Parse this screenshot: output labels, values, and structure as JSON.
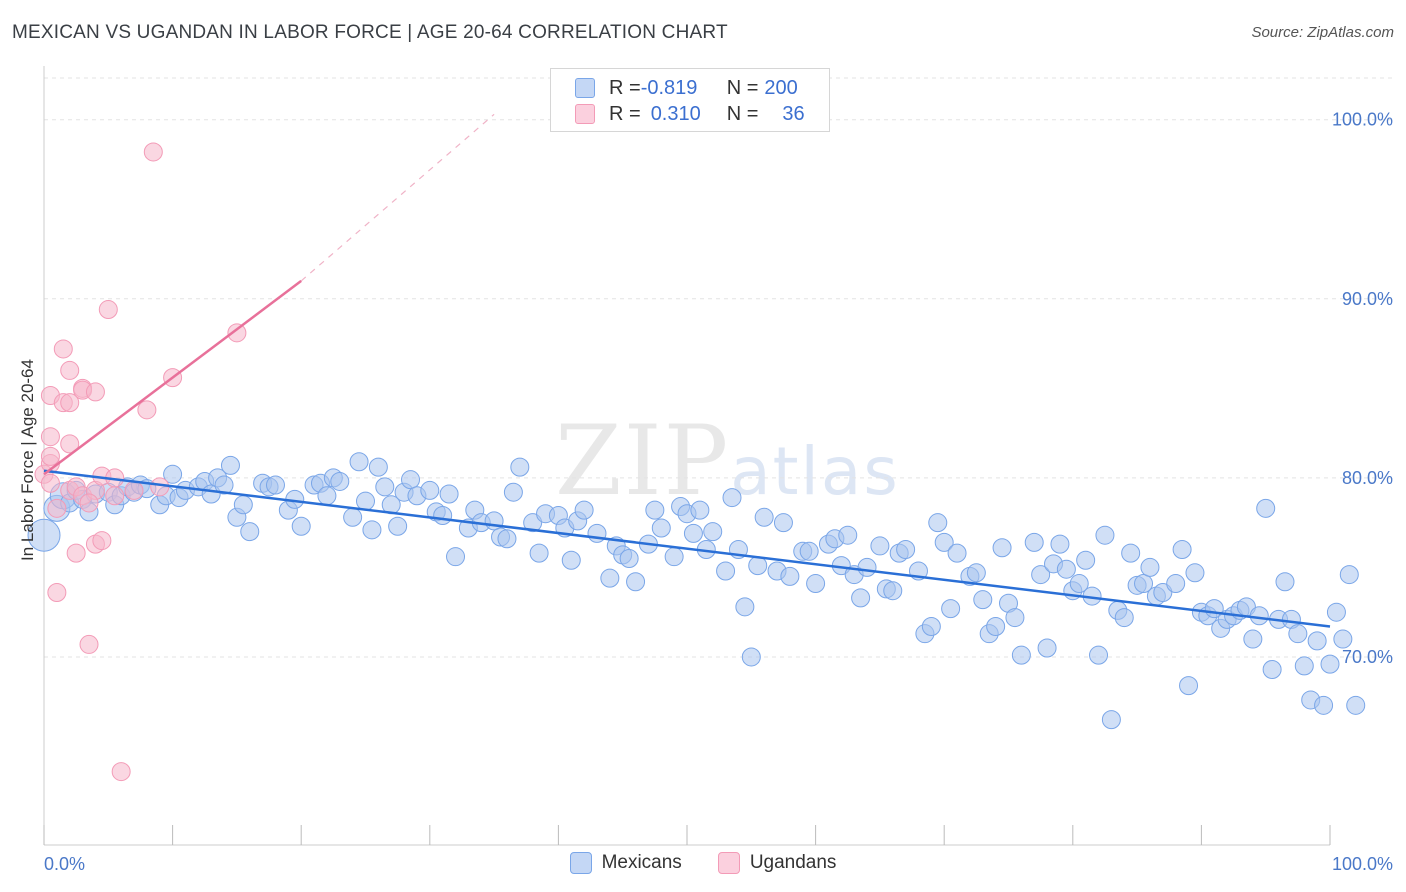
{
  "title": "MEXICAN VS UGANDAN IN LABOR FORCE | AGE 20-64 CORRELATION CHART",
  "source": "Source: ZipAtlas.com",
  "watermark": {
    "zip": "ZIP",
    "atlas": "atlas"
  },
  "legend": {
    "rows": [
      {
        "r_label": "R = ",
        "r_value": "-0.819",
        "n_label": "N = ",
        "n_value": "200",
        "color": "#a9c4ef"
      },
      {
        "r_label": "R = ",
        "r_value": "0.310",
        "n_label": "N = ",
        "n_value": "36",
        "color": "#f6b7cb"
      }
    ]
  },
  "bottom_legend": [
    {
      "label": "Mexicans",
      "color": "#a9c4ef"
    },
    {
      "label": "Ugandans",
      "color": "#f6b7cb"
    }
  ],
  "chart_data": {
    "type": "scatter",
    "title": "MEXICAN VS UGANDAN IN LABOR FORCE | AGE 20-64 CORRELATION CHART",
    "xlabel": "",
    "ylabel": "In Labor Force | Age 20-64",
    "xlim": [
      0,
      100
    ],
    "ylim": [
      59.5,
      103
    ],
    "x_tick_labels": [
      "0.0%",
      "100.0%"
    ],
    "y_ticks": [
      70,
      80,
      90,
      100
    ],
    "y_tick_labels": [
      "70.0%",
      "80.0%",
      "90.0%",
      "100.0%"
    ],
    "grid": true,
    "series": [
      {
        "name": "Mexicans",
        "color": "#7aa6e8",
        "trend": {
          "x": [
            0,
            100
          ],
          "y": [
            80.4,
            71.7
          ]
        },
        "points": [
          [
            0,
            76.8
          ],
          [
            1,
            78.3
          ],
          [
            1.5,
            79.0
          ],
          [
            2,
            78.6
          ],
          [
            2.5,
            79.3
          ],
          [
            3,
            78.8
          ],
          [
            3.5,
            78.1
          ],
          [
            4,
            79.1
          ],
          [
            5,
            79.2
          ],
          [
            5.5,
            78.5
          ],
          [
            6,
            79.0
          ],
          [
            6.5,
            79.5
          ],
          [
            7,
            79.2
          ],
          [
            7.5,
            79.6
          ],
          [
            8,
            79.4
          ],
          [
            9,
            78.5
          ],
          [
            9.5,
            79.0
          ],
          [
            10,
            80.2
          ],
          [
            10.5,
            78.9
          ],
          [
            11,
            79.3
          ],
          [
            12,
            79.5
          ],
          [
            12.5,
            79.8
          ],
          [
            13,
            79.1
          ],
          [
            13.5,
            80.0
          ],
          [
            14,
            79.6
          ],
          [
            14.5,
            80.7
          ],
          [
            15,
            77.8
          ],
          [
            15.5,
            78.5
          ],
          [
            16,
            77.0
          ],
          [
            17,
            79.7
          ],
          [
            17.5,
            79.5
          ],
          [
            18,
            79.6
          ],
          [
            19,
            78.2
          ],
          [
            19.5,
            78.8
          ],
          [
            20,
            77.3
          ],
          [
            21,
            79.6
          ],
          [
            21.5,
            79.7
          ],
          [
            22,
            79.0
          ],
          [
            22.5,
            80.0
          ],
          [
            23,
            79.8
          ],
          [
            24,
            77.8
          ],
          [
            24.5,
            80.9
          ],
          [
            25,
            78.7
          ],
          [
            25.5,
            77.1
          ],
          [
            26,
            80.6
          ],
          [
            26.5,
            79.5
          ],
          [
            27,
            78.5
          ],
          [
            27.5,
            77.3
          ],
          [
            28,
            79.2
          ],
          [
            28.5,
            79.9
          ],
          [
            29,
            79.0
          ],
          [
            30,
            79.3
          ],
          [
            30.5,
            78.1
          ],
          [
            31,
            77.9
          ],
          [
            31.5,
            79.1
          ],
          [
            32,
            75.6
          ],
          [
            33,
            77.2
          ],
          [
            33.5,
            78.2
          ],
          [
            34,
            77.5
          ],
          [
            35,
            77.6
          ],
          [
            35.5,
            76.7
          ],
          [
            36,
            76.6
          ],
          [
            36.5,
            79.2
          ],
          [
            37,
            80.6
          ],
          [
            38,
            77.5
          ],
          [
            38.5,
            75.8
          ],
          [
            39,
            78.0
          ],
          [
            40,
            77.9
          ],
          [
            40.5,
            77.2
          ],
          [
            41,
            75.4
          ],
          [
            41.5,
            77.6
          ],
          [
            42,
            78.2
          ],
          [
            43,
            76.9
          ],
          [
            44,
            74.4
          ],
          [
            44.5,
            76.2
          ],
          [
            45,
            75.7
          ],
          [
            45.5,
            75.5
          ],
          [
            46,
            74.2
          ],
          [
            47,
            76.3
          ],
          [
            47.5,
            78.2
          ],
          [
            48,
            77.2
          ],
          [
            49,
            75.6
          ],
          [
            49.5,
            78.4
          ],
          [
            50,
            78.0
          ],
          [
            50.5,
            76.9
          ],
          [
            51,
            78.2
          ],
          [
            51.5,
            76.0
          ],
          [
            52,
            77.0
          ],
          [
            53,
            74.8
          ],
          [
            53.5,
            78.9
          ],
          [
            54,
            76.0
          ],
          [
            54.5,
            72.8
          ],
          [
            55,
            70.0
          ],
          [
            55.5,
            75.1
          ],
          [
            56,
            77.8
          ],
          [
            57,
            74.8
          ],
          [
            57.5,
            77.5
          ],
          [
            58,
            74.5
          ],
          [
            59,
            75.9
          ],
          [
            59.5,
            75.9
          ],
          [
            60,
            74.1
          ],
          [
            61,
            76.3
          ],
          [
            61.5,
            76.6
          ],
          [
            62,
            75.1
          ],
          [
            62.5,
            76.8
          ],
          [
            63,
            74.6
          ],
          [
            63.5,
            73.3
          ],
          [
            64,
            75.0
          ],
          [
            65,
            76.2
          ],
          [
            65.5,
            73.8
          ],
          [
            66,
            73.7
          ],
          [
            66.5,
            75.8
          ],
          [
            67,
            76.0
          ],
          [
            68,
            74.8
          ],
          [
            68.5,
            71.3
          ],
          [
            69,
            71.7
          ],
          [
            69.5,
            77.5
          ],
          [
            70,
            76.4
          ],
          [
            70.5,
            72.7
          ],
          [
            71,
            75.8
          ],
          [
            72,
            74.5
          ],
          [
            72.5,
            74.7
          ],
          [
            73,
            73.2
          ],
          [
            73.5,
            71.3
          ],
          [
            74,
            71.7
          ],
          [
            74.5,
            76.1
          ],
          [
            75,
            73.0
          ],
          [
            75.5,
            72.2
          ],
          [
            76,
            70.1
          ],
          [
            77,
            76.4
          ],
          [
            77.5,
            74.6
          ],
          [
            78,
            70.5
          ],
          [
            78.5,
            75.2
          ],
          [
            79,
            76.3
          ],
          [
            79.5,
            74.9
          ],
          [
            80,
            73.7
          ],
          [
            80.5,
            74.1
          ],
          [
            81,
            75.4
          ],
          [
            81.5,
            73.4
          ],
          [
            82,
            70.1
          ],
          [
            82.5,
            76.8
          ],
          [
            83,
            66.5
          ],
          [
            83.5,
            72.6
          ],
          [
            84,
            72.2
          ],
          [
            84.5,
            75.8
          ],
          [
            85,
            74.0
          ],
          [
            85.5,
            74.1
          ],
          [
            86,
            75.0
          ],
          [
            86.5,
            73.4
          ],
          [
            87,
            73.6
          ],
          [
            88,
            74.1
          ],
          [
            88.5,
            76.0
          ],
          [
            89,
            68.4
          ],
          [
            89.5,
            74.7
          ],
          [
            90,
            72.5
          ],
          [
            90.5,
            72.3
          ],
          [
            91,
            72.7
          ],
          [
            91.5,
            71.6
          ],
          [
            92,
            72.1
          ],
          [
            92.5,
            72.3
          ],
          [
            93,
            72.6
          ],
          [
            93.5,
            72.8
          ],
          [
            94,
            71.0
          ],
          [
            94.5,
            72.3
          ],
          [
            95,
            78.3
          ],
          [
            95.5,
            69.3
          ],
          [
            96,
            72.1
          ],
          [
            96.5,
            74.2
          ],
          [
            97,
            72.1
          ],
          [
            97.5,
            71.3
          ],
          [
            98,
            69.5
          ],
          [
            98.5,
            67.6
          ],
          [
            99,
            70.9
          ],
          [
            99.5,
            67.3
          ],
          [
            100,
            69.6
          ],
          [
            100.5,
            72.5
          ],
          [
            101,
            71.0
          ],
          [
            101.5,
            74.6
          ],
          [
            102,
            67.3
          ]
        ]
      },
      {
        "name": "Ugandans",
        "color": "#f39bb7",
        "trend": {
          "x": [
            0,
            20
          ],
          "y": [
            80.2,
            91.0
          ]
        },
        "trend_extension": {
          "x": [
            20,
            35
          ],
          "y": [
            91.0,
            100.3
          ]
        },
        "points": [
          [
            0,
            80.2
          ],
          [
            0.5,
            79.7
          ],
          [
            0.5,
            80.8
          ],
          [
            0.5,
            81.2
          ],
          [
            0.5,
            82.3
          ],
          [
            0.5,
            84.6
          ],
          [
            1,
            78.3
          ],
          [
            1,
            73.6
          ],
          [
            1.5,
            84.2
          ],
          [
            1.5,
            87.2
          ],
          [
            2,
            79.3
          ],
          [
            2,
            81.9
          ],
          [
            2,
            86.0
          ],
          [
            2,
            84.2
          ],
          [
            2.5,
            75.8
          ],
          [
            2.5,
            79.5
          ],
          [
            3,
            79.0
          ],
          [
            3,
            85.0
          ],
          [
            3,
            84.9
          ],
          [
            3.5,
            70.7
          ],
          [
            4,
            76.3
          ],
          [
            4,
            79.3
          ],
          [
            4,
            84.8
          ],
          [
            4.5,
            76.5
          ],
          [
            4.5,
            80.1
          ],
          [
            5,
            89.4
          ],
          [
            5.5,
            79.0
          ],
          [
            5.5,
            80.0
          ],
          [
            6,
            63.6
          ],
          [
            7,
            79.3
          ],
          [
            8,
            83.8
          ],
          [
            8.5,
            98.2
          ],
          [
            9,
            79.5
          ],
          [
            10,
            85.6
          ],
          [
            15,
            88.1
          ],
          [
            3.5,
            78.6
          ]
        ]
      }
    ]
  }
}
